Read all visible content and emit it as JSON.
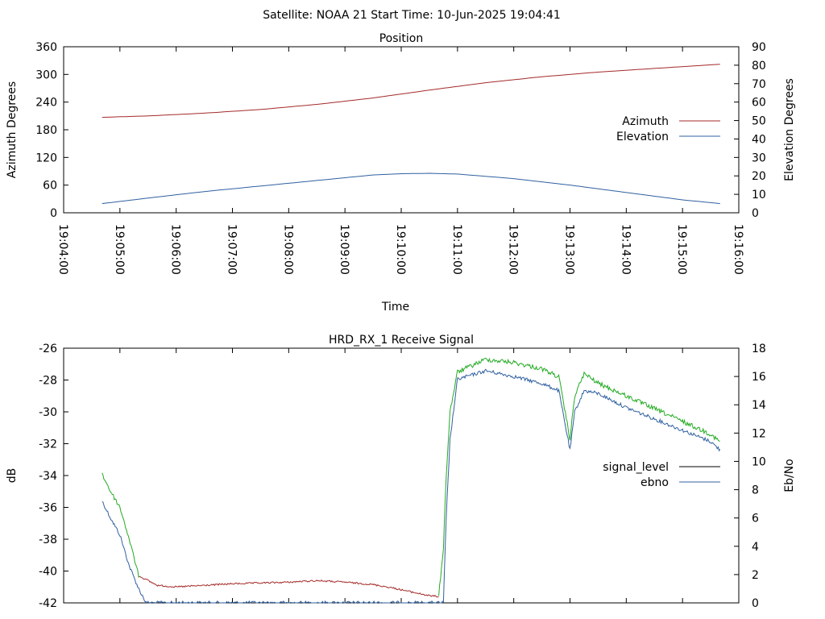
{
  "header": {
    "title": "Satellite: NOAA 21    Start Time: 10-Jun-2025 19:04:41"
  },
  "chart_data": [
    {
      "type": "line",
      "title": "Position",
      "xlabel": "Time",
      "ylabel": "Azimuth Degrees",
      "y2label": "Elevation Degrees",
      "xlim": [
        "19:04:00",
        "19:16:00"
      ],
      "xticks": [
        "19:04:00",
        "19:05:00",
        "19:06:00",
        "19:07:00",
        "19:08:00",
        "19:09:00",
        "19:10:00",
        "19:11:00",
        "19:12:00",
        "19:13:00",
        "19:14:00",
        "19:15:00",
        "19:16:00"
      ],
      "ylim": [
        0,
        360
      ],
      "yticks": [
        "0",
        "60",
        "120",
        "180",
        "240",
        "300",
        "360"
      ],
      "y2lim": [
        0,
        90
      ],
      "y2ticks": [
        "0",
        "10",
        "20",
        "30",
        "40",
        "50",
        "60",
        "70",
        "80",
        "90"
      ],
      "grid": false,
      "legend_position": "right",
      "series": [
        {
          "name": "Azimuth",
          "axis": "y",
          "color": "#a52a2a",
          "x": [
            "19:04:41",
            "19:05:30",
            "19:06:30",
            "19:07:30",
            "19:08:30",
            "19:09:30",
            "19:10:30",
            "19:11:30",
            "19:12:30",
            "19:13:30",
            "19:14:30",
            "19:15:40"
          ],
          "values": [
            207,
            210,
            216,
            224,
            235,
            249,
            266,
            282,
            295,
            305,
            313,
            322
          ]
        },
        {
          "name": "Elevation",
          "axis": "y2",
          "color": "#3060a0",
          "x": [
            "19:04:41",
            "19:05:30",
            "19:06:30",
            "19:07:30",
            "19:08:30",
            "19:09:30",
            "19:10:00",
            "19:10:30",
            "19:11:00",
            "19:12:00",
            "19:13:00",
            "19:14:00",
            "19:15:00",
            "19:15:40"
          ],
          "values": [
            5,
            8,
            11.5,
            14.5,
            17.5,
            20.5,
            21.2,
            21.4,
            21,
            18.5,
            15,
            11,
            7,
            5
          ]
        }
      ]
    },
    {
      "type": "line",
      "title": "HRD_RX_1 Receive Signal",
      "ylabel": "dB",
      "y2label": "Eb/No",
      "xlim": [
        "19:04:00",
        "19:16:00"
      ],
      "ylim": [
        -42,
        -26
      ],
      "yticks": [
        "-42",
        "-40",
        "-38",
        "-36",
        "-34",
        "-32",
        "-30",
        "-28",
        "-26"
      ],
      "y2lim": [
        0,
        18
      ],
      "y2ticks": [
        "0",
        "2",
        "4",
        "6",
        "8",
        "10",
        "12",
        "14",
        "16",
        "18"
      ],
      "grid": false,
      "legend_position": "right",
      "series": [
        {
          "name": "signal_level",
          "axis": "y",
          "color": "#000000",
          "segments": [
            {
              "color": "#a52a2a",
              "x": [
                "19:05:20",
                "19:05:40",
                "19:06:00",
                "19:06:30",
                "19:07:00",
                "19:07:30",
                "19:08:00",
                "19:08:30",
                "19:09:00",
                "19:09:30",
                "19:09:50",
                "19:10:10",
                "19:10:30",
                "19:10:40"
              ],
              "values": [
                -40.3,
                -40.9,
                -41.0,
                -40.9,
                -40.8,
                -40.75,
                -40.7,
                -40.6,
                -40.7,
                -40.85,
                -41.05,
                -41.3,
                -41.55,
                -41.6
              ]
            },
            {
              "color": "#22aa22",
              "x": [
                "19:04:41",
                "19:04:50",
                "19:05:00",
                "19:05:10",
                "19:05:20",
                "19:10:40",
                "19:10:45",
                "19:10:48",
                "19:10:52",
                "19:11:00",
                "19:11:30",
                "19:12:00",
                "19:12:30",
                "19:12:48",
                "19:13:00",
                "19:13:05",
                "19:13:15",
                "19:13:30",
                "19:14:00",
                "19:14:30",
                "19:15:00",
                "19:15:30",
                "19:15:40"
              ],
              "values": [
                -33.9,
                -35.0,
                -36.0,
                -38.0,
                -40.3,
                -41.6,
                -38.5,
                -34.0,
                -30.0,
                -27.5,
                -26.7,
                -26.9,
                -27.3,
                -27.8,
                -31.7,
                -29.0,
                -27.6,
                -28.2,
                -29.0,
                -29.8,
                -30.6,
                -31.4,
                -31.9
              ]
            }
          ]
        },
        {
          "name": "ebno",
          "axis": "y2",
          "color": "#3060a0",
          "x": [
            "19:04:41",
            "19:04:50",
            "19:05:00",
            "19:05:10",
            "19:05:20",
            "19:05:28",
            "19:10:45",
            "19:10:48",
            "19:10:52",
            "19:11:00",
            "19:11:30",
            "19:12:00",
            "19:12:30",
            "19:12:48",
            "19:13:00",
            "19:13:05",
            "19:13:15",
            "19:13:30",
            "19:14:00",
            "19:14:30",
            "19:15:00",
            "19:15:30",
            "19:15:40"
          ],
          "values": [
            7.2,
            6.0,
            4.8,
            2.6,
            1.0,
            0,
            0,
            6.0,
            11.5,
            15.8,
            16.4,
            16.0,
            15.5,
            15.0,
            10.8,
            13.5,
            15.0,
            14.8,
            13.8,
            13.0,
            12.2,
            11.4,
            10.8
          ]
        }
      ]
    }
  ]
}
